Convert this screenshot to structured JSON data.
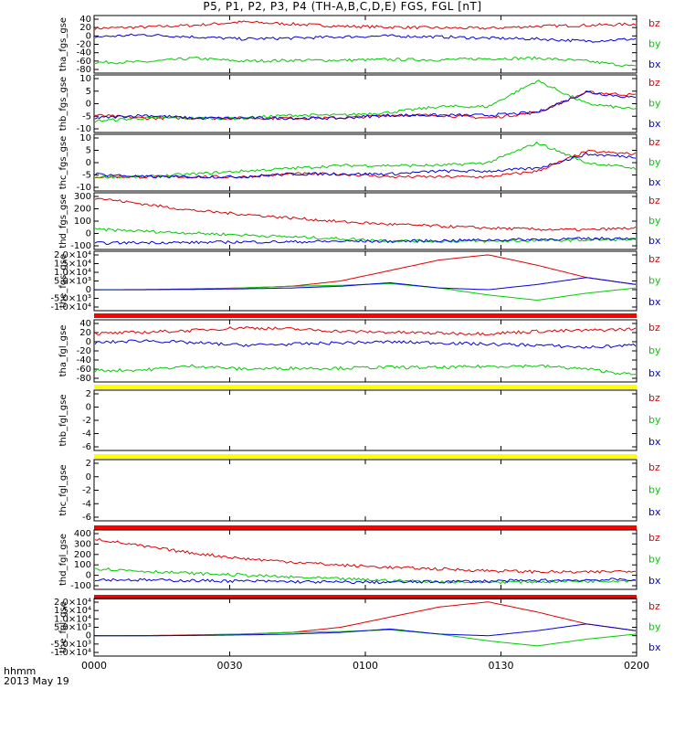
{
  "title": "P5, P1, P2, P3, P4 (TH-A,B,C,D,E) FGS, FGL [nT]",
  "footer": {
    "hhmm_label": "hhmm",
    "date_label": "2013 May 19"
  },
  "colors": {
    "bz": "#e00000",
    "by": "#00cc00",
    "bx": "#0000e0",
    "flag_red": "#ff0000",
    "flag_yellow": "#ffff00",
    "axis": "#000000"
  },
  "chart_data": {
    "type": "line",
    "x_ticks": [
      "0000",
      "0030",
      "0100",
      "0130",
      "0200"
    ],
    "x_range": [
      "00:00",
      "02:00"
    ],
    "panels": [
      {
        "ylabel": "tha_fgs_gse",
        "yticks": [
          "40",
          "20",
          "0",
          "-20",
          "-40",
          "-60",
          "-80"
        ],
        "ylim": [
          -90,
          45
        ],
        "series": [
          {
            "name": "bz",
            "values": [
              15,
              18,
              22,
              30,
              25,
              20,
              18,
              16,
              15,
              20,
              22,
              25
            ]
          },
          {
            "name": "by",
            "values": [
              -65,
              -64,
              -55,
              -62,
              -60,
              -60,
              -58,
              -59,
              -56,
              -55,
              -62,
              -75
            ]
          },
          {
            "name": "bx",
            "values": [
              -5,
              0,
              -5,
              -10,
              -8,
              -5,
              -3,
              -5,
              -8,
              -10,
              -15,
              -10
            ]
          }
        ]
      },
      {
        "ylabel": "thb_fgs_gse",
        "yticks": [
          "10",
          "5",
          "0",
          "-5",
          "-10"
        ],
        "ylim": [
          -10,
          10
        ],
        "series": [
          {
            "name": "bz",
            "values": [
              -4,
              -5,
              -5,
              -5,
              -5,
              -5,
              -4,
              -4,
              -5,
              -3,
              4,
              3
            ]
          },
          {
            "name": "by",
            "values": [
              -6,
              -5,
              -5,
              -5,
              -4,
              -4,
              -3,
              -1,
              -1,
              8,
              0,
              -2
            ]
          },
          {
            "name": "bx",
            "values": [
              -5,
              -4,
              -5,
              -5,
              -5,
              -5,
              -4,
              -4,
              -4,
              -3,
              4,
              2
            ]
          }
        ]
      },
      {
        "ylabel": "thc_fgs_gse",
        "yticks": [
          "10",
          "5",
          "0",
          "-5",
          "-10"
        ],
        "ylim": [
          -10,
          10
        ],
        "series": [
          {
            "name": "bz",
            "values": [
              -5,
              -5,
              -5,
              -5,
              -4,
              -4,
              -5,
              -5,
              -5,
              -3,
              4,
              3
            ]
          },
          {
            "name": "by",
            "values": [
              -5,
              -5,
              -4,
              -3,
              -2,
              -1,
              -1,
              -1,
              0,
              7,
              0,
              -2
            ]
          },
          {
            "name": "bx",
            "values": [
              -4,
              -5,
              -5,
              -5,
              -4,
              -4,
              -4,
              -3,
              -3,
              -2,
              3,
              2
            ]
          }
        ]
      },
      {
        "ylabel": "thd_fgs_gse",
        "yticks": [
          "300",
          "200",
          "100",
          "0",
          "-100"
        ],
        "ylim": [
          -110,
          340
        ],
        "series": [
          {
            "name": "bz",
            "values": [
              300,
              250,
              200,
              170,
              140,
              110,
              90,
              75,
              60,
              50,
              45,
              60
            ]
          },
          {
            "name": "by",
            "values": [
              50,
              35,
              20,
              5,
              -10,
              -25,
              -40,
              -45,
              -45,
              -40,
              -35,
              -30
            ]
          },
          {
            "name": "bx",
            "values": [
              -60,
              -55,
              -55,
              -50,
              -50,
              -45,
              -45,
              -40,
              -35,
              -30,
              -25,
              -20
            ]
          }
        ]
      },
      {
        "ylabel": "the_fgs_gse",
        "yticks": [
          "2.0×10⁴",
          "1.5×10⁴",
          "1.0×10⁴",
          "5.0×10³",
          "0",
          "-5.0×10³",
          "-1.0×10⁴"
        ],
        "ylim": [
          -12000,
          22000
        ],
        "series": [
          {
            "name": "bz",
            "values": [
              0,
              100,
              500,
              1000,
              2000,
              5000,
              11000,
              17000,
              20000,
              14000,
              7000,
              3000
            ]
          },
          {
            "name": "by",
            "values": [
              0,
              50,
              200,
              1000,
              2000,
              2500,
              3500,
              1000,
              -3000,
              -6000,
              -2000,
              1000
            ]
          },
          {
            "name": "bx",
            "values": [
              0,
              0,
              200,
              500,
              1000,
              2000,
              4000,
              1000,
              0,
              3000,
              7000,
              3000
            ]
          }
        ]
      },
      {
        "ylabel": "tha_fgl_gse",
        "yticks": [
          "40",
          "20",
          "0",
          "-20",
          "-40",
          "-60",
          "-80"
        ],
        "ylim": [
          -90,
          45
        ],
        "series": [
          {
            "name": "bz",
            "values": [
              15,
              18,
              22,
              28,
              25,
              20,
              18,
              16,
              15,
              20,
              22,
              25
            ]
          },
          {
            "name": "by",
            "values": [
              -65,
              -64,
              -55,
              -62,
              -60,
              -60,
              -58,
              -59,
              -56,
              -55,
              -62,
              -75
            ]
          },
          {
            "name": "bx",
            "values": [
              -5,
              0,
              -5,
              -10,
              -8,
              -5,
              -3,
              -5,
              -8,
              -10,
              -15,
              -10
            ]
          }
        ]
      },
      {
        "ylabel": "thb_fgl_gse",
        "yticks": [
          "2",
          "0",
          "-2",
          "-4",
          "-6"
        ],
        "ylim": [
          -7,
          3
        ],
        "series": []
      },
      {
        "ylabel": "thc_fgl_gse",
        "yticks": [
          "2",
          "0",
          "-2",
          "-4",
          "-6"
        ],
        "ylim": [
          -7,
          3
        ],
        "series": []
      },
      {
        "ylabel": "thd_fgl_gse",
        "yticks": [
          "400",
          "300",
          "200",
          "100",
          "0",
          "-100"
        ],
        "ylim": [
          -110,
          430
        ],
        "series": [
          {
            "name": "bz",
            "values": [
              350,
              280,
              220,
              170,
              140,
              110,
              90,
              75,
              60,
              50,
              45,
              60
            ]
          },
          {
            "name": "by",
            "values": [
              80,
              55,
              35,
              20,
              0,
              -15,
              -30,
              -40,
              -45,
              -40,
              -35,
              -30
            ]
          },
          {
            "name": "bx",
            "values": [
              -20,
              -25,
              -30,
              -35,
              -40,
              -45,
              -45,
              -40,
              -35,
              -30,
              -25,
              -20
            ]
          }
        ]
      },
      {
        "ylabel": "the_fgl_gse",
        "yticks": [
          "2.0×10⁴",
          "1.5×10⁴",
          "1.0×10⁴",
          "5.0×10³",
          "0",
          "-5.0×10³",
          "-1.0×10⁴"
        ],
        "ylim": [
          -12000,
          22000
        ],
        "series": [
          {
            "name": "bz",
            "values": [
              0,
              100,
              500,
              1000,
              2000,
              5000,
              11000,
              17000,
              20000,
              14000,
              7000,
              3000
            ]
          },
          {
            "name": "by",
            "values": [
              0,
              50,
              200,
              1000,
              2000,
              2500,
              3500,
              1000,
              -3000,
              -6000,
              -2000,
              1000
            ]
          },
          {
            "name": "bx",
            "values": [
              0,
              0,
              200,
              500,
              1000,
              2000,
              4000,
              1000,
              0,
              3000,
              7000,
              3000
            ]
          }
        ]
      }
    ],
    "legend": [
      "bz",
      "by",
      "bx"
    ]
  }
}
